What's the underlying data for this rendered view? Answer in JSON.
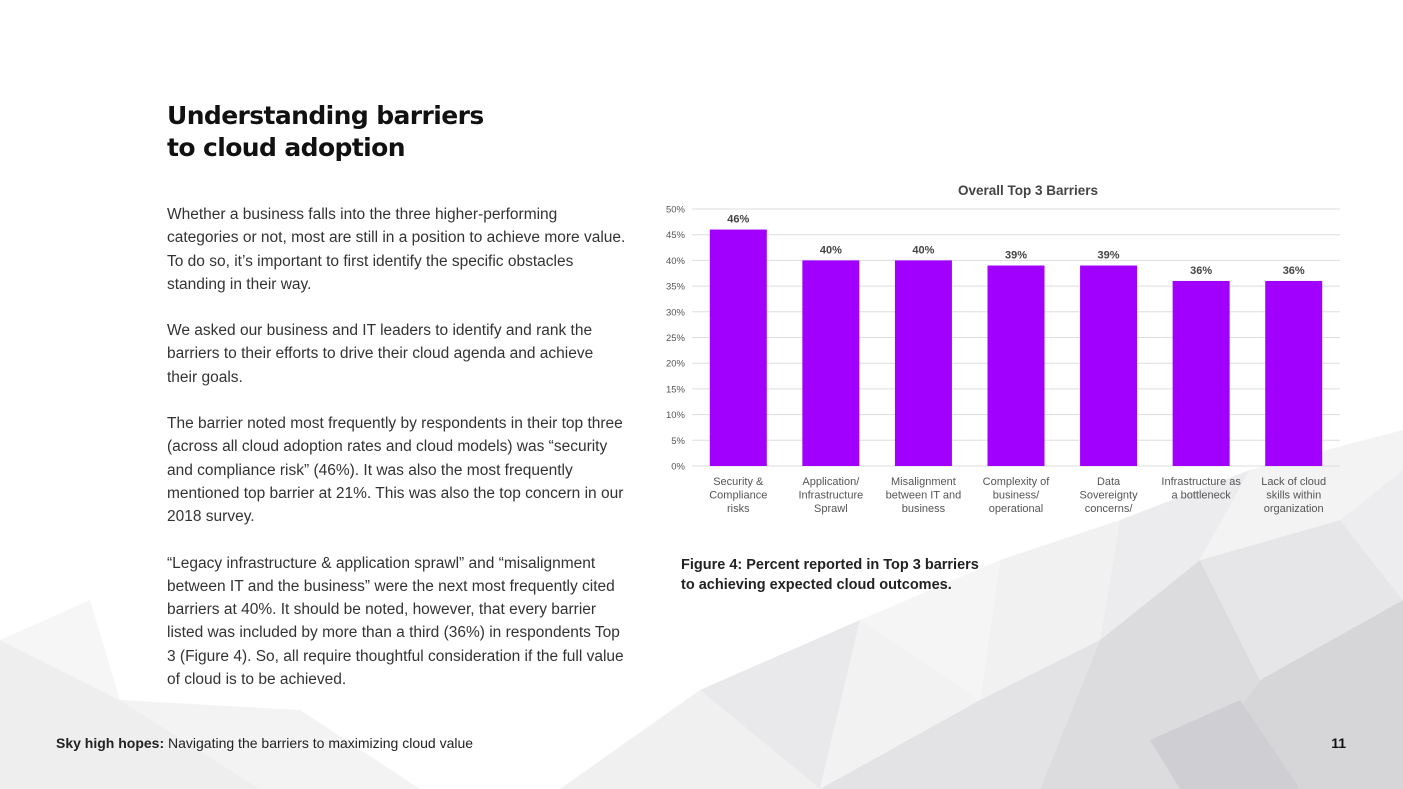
{
  "page": {
    "title_line1": "Understanding barriers",
    "title_line2": "to cloud adoption",
    "paragraphs": [
      "Whether a business falls into the three higher-performing categories or not, most are still in a position to achieve more value. To do so, it’s important to first identify the specific obstacles standing in their way.",
      "We asked our business and IT leaders to identify and rank the barriers to their efforts to drive their cloud agenda and achieve their goals.",
      "The barrier noted most frequently by respondents in their top three (across all cloud adoption rates and cloud models) was “security and compliance risk” (46%).  It was also the most frequently mentioned top barrier at 21%. This was also the top concern in our 2018 survey.",
      "“Legacy infrastructure & application sprawl” and “misalignment between IT and the business” were the next most frequently cited barriers at 40%. It should be noted, however, that every barrier listed was included by more than a third (36%) in respondents Top 3 (Figure 4). So, all require thoughtful consideration if the full value of cloud is to be achieved."
    ],
    "figure_caption_line1": "Figure 4: Percent reported in Top 3 barriers",
    "figure_caption_line2": "to achieving expected cloud outcomes.",
    "footer": {
      "title_bold": "Sky high hopes:",
      "title_rest": " Navigating the barriers to maximizing cloud value",
      "page_number": "11"
    }
  },
  "colors": {
    "bar": "#a100ff",
    "gridline": "#dddddd",
    "axis_text": "#555555",
    "label_text": "#444444"
  },
  "chart_data": {
    "type": "bar",
    "title": "Overall Top 3 Barriers",
    "categories": [
      [
        "Security &",
        "Compliance",
        "risks"
      ],
      [
        "Application/",
        "Infrastructure",
        "Sprawl"
      ],
      [
        "Misalignment",
        "between IT and",
        "business"
      ],
      [
        "Complexity of",
        "business/",
        "operational"
      ],
      [
        "Data",
        "Sovereignty",
        "concerns/"
      ],
      [
        "Infrastructure as",
        "a bottleneck"
      ],
      [
        "Lack of cloud",
        "skills within",
        "organization"
      ]
    ],
    "values": [
      46,
      40,
      40,
      39,
      39,
      36,
      36
    ],
    "value_labels": [
      "46%",
      "40%",
      "40%",
      "39%",
      "39%",
      "36%",
      "36%"
    ],
    "ylim": [
      0,
      50
    ],
    "yticks": [
      "0%",
      "5%",
      "10%",
      "15%",
      "20%",
      "25%",
      "30%",
      "35%",
      "40%",
      "45%",
      "50%"
    ],
    "xlabel": "",
    "ylabel": "",
    "grid": true,
    "legend": "none"
  }
}
